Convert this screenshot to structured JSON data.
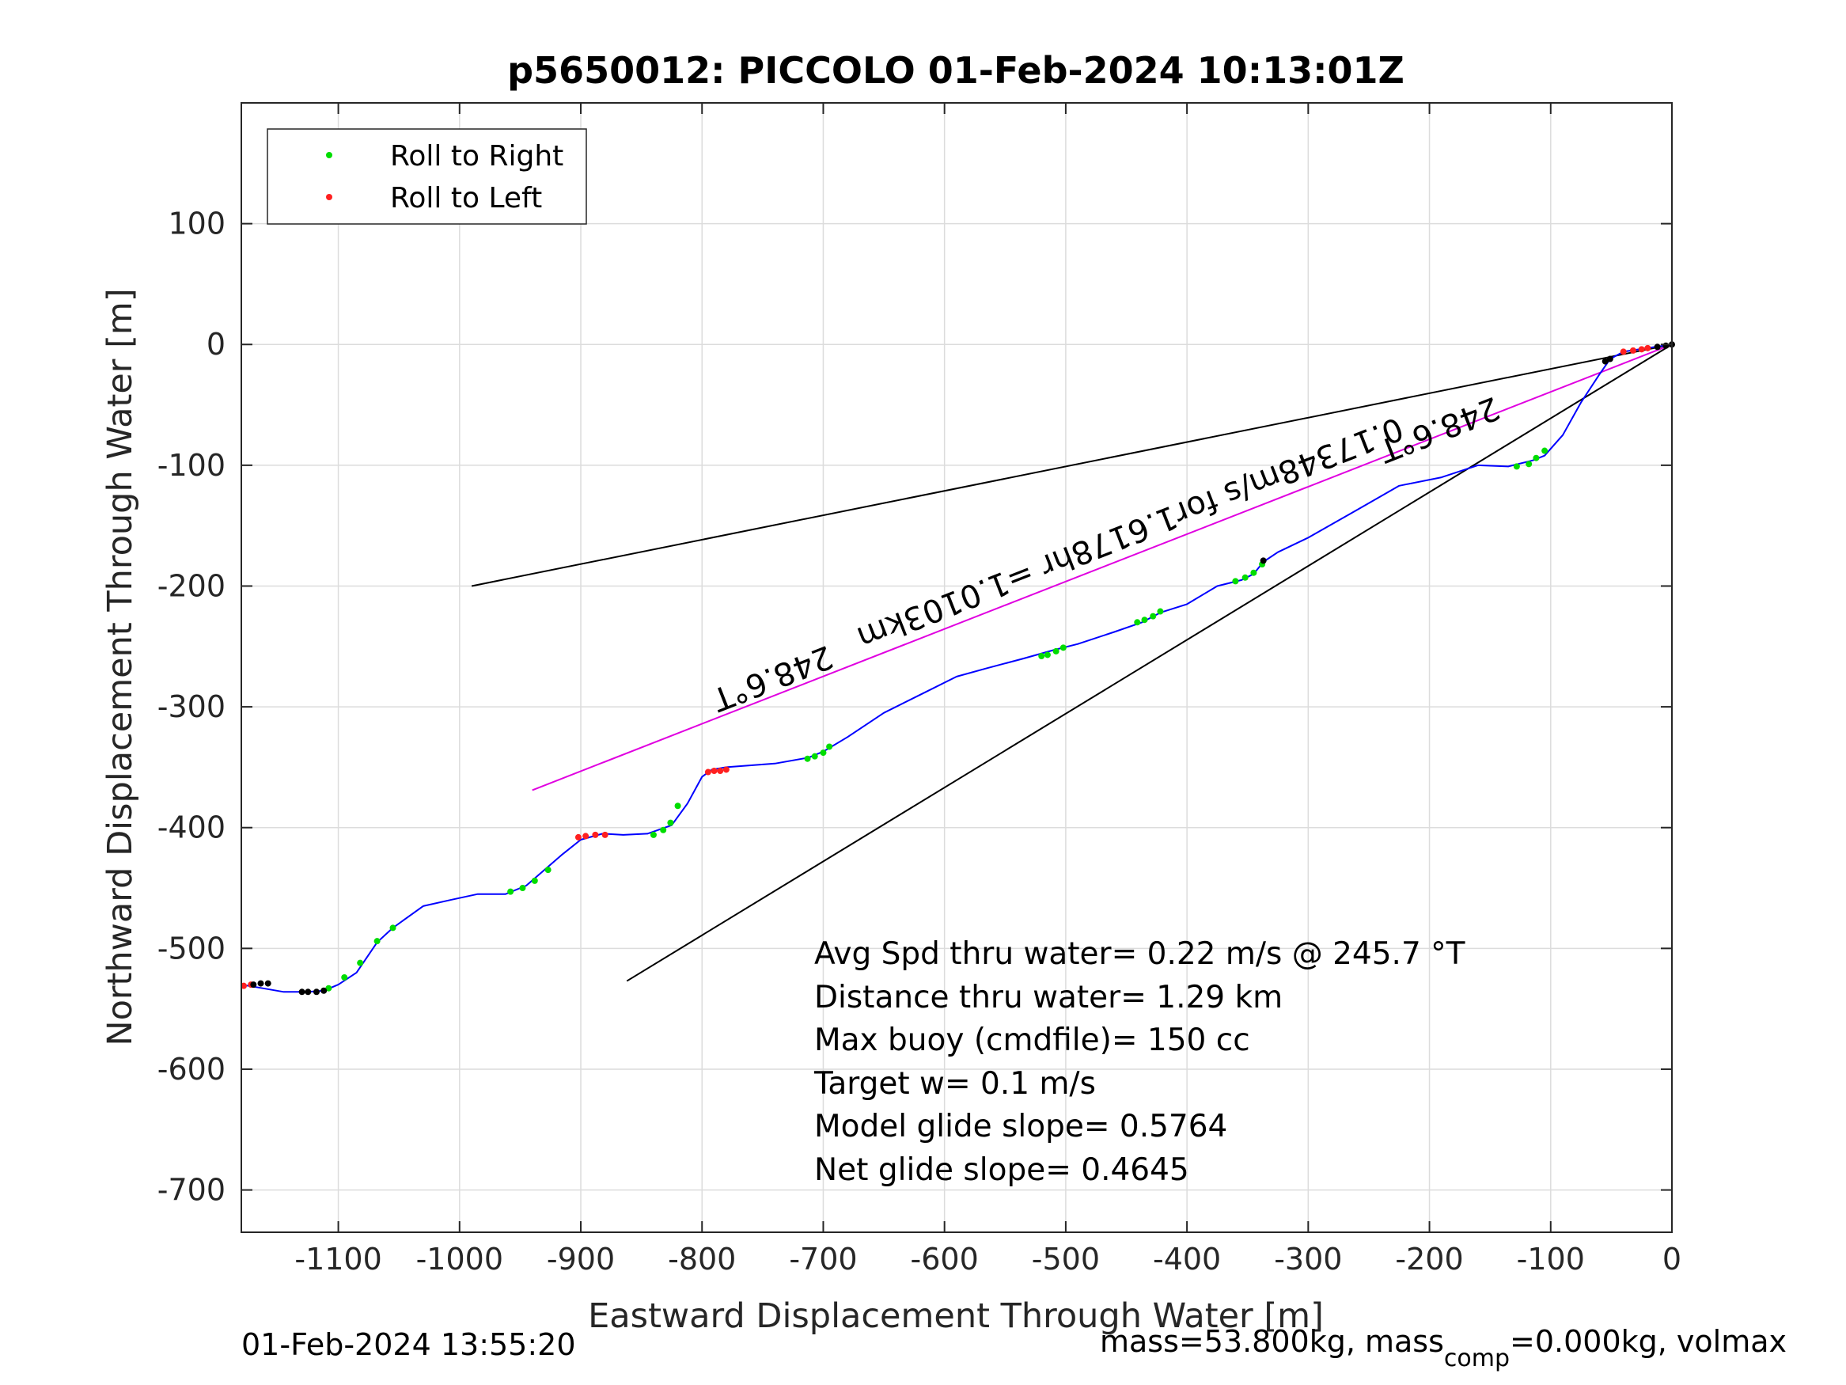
{
  "chart_data": {
    "type": "line",
    "title": "p5650012: PICCOLO 01-Feb-2024 10:13:01Z",
    "xlabel": "Eastward Displacement Through Water [m]",
    "ylabel": "Northward Displacement Through Water [m]",
    "xlim": [
      -1180,
      0
    ],
    "ylim": [
      -735,
      200
    ],
    "xticks": [
      -1100,
      -1000,
      -900,
      -800,
      -700,
      -600,
      -500,
      -400,
      -300,
      -200,
      -100,
      0
    ],
    "yticks": [
      100,
      0,
      -100,
      -200,
      -300,
      -400,
      -500,
      -600,
      -700
    ],
    "grid": true,
    "legend_position": "top-left",
    "legend": [
      {
        "label": "Roll to Right",
        "color": "#00dd00"
      },
      {
        "label": "Roll to Left",
        "color": "#ff2020"
      }
    ],
    "series": [
      {
        "style": "track",
        "color": "#0000ff",
        "x": [
          0,
          -20,
          -40,
          -51,
          -60,
          -75,
          -90,
          -105,
          -115,
          -135,
          -160,
          -190,
          -225,
          -265,
          -300,
          -325,
          -337,
          -345,
          -355,
          -375,
          -400,
          -422,
          -437,
          -460,
          -490,
          -510,
          -535,
          -565,
          -590,
          -620,
          -650,
          -680,
          -700,
          -712,
          -740,
          -780,
          -792,
          -800,
          -812,
          -825,
          -845,
          -865,
          -882,
          -900,
          -915,
          -930,
          -945,
          -962,
          -985,
          -1008,
          -1030,
          -1055,
          -1068,
          -1085,
          -1100,
          -1112,
          -1125,
          -1145,
          -1168,
          -1180
        ],
        "y": [
          0,
          -3,
          -6,
          -12,
          -25,
          -48,
          -75,
          -92,
          -96,
          -101,
          -100,
          -110,
          -117,
          -140,
          -160,
          -172,
          -180,
          -190,
          -195,
          -200,
          -215,
          -222,
          -230,
          -238,
          -248,
          -253,
          -260,
          -268,
          -275,
          -290,
          -305,
          -325,
          -337,
          -342,
          -347,
          -350,
          -352,
          -358,
          -380,
          -398,
          -405,
          -406,
          -405,
          -410,
          -422,
          -435,
          -448,
          -455,
          -455,
          -460,
          -465,
          -483,
          -495,
          -520,
          -530,
          -535,
          -536,
          -536,
          -532,
          -530
        ]
      },
      {
        "name": "Roll to Right",
        "color": "#00dd00",
        "x": [
          -105,
          -112,
          -118,
          -128,
          -338,
          -345,
          -352,
          -360,
          -422,
          -428,
          -435,
          -441,
          -502,
          -508,
          -515,
          -520,
          -695,
          -700,
          -707,
          -713,
          -820,
          -826,
          -832,
          -840,
          -927,
          -938,
          -948,
          -958,
          -1055,
          -1068,
          -1082,
          -1095,
          -1108
        ],
        "y": [
          -88,
          -94,
          -99,
          -101,
          -182,
          -189,
          -193,
          -196,
          -221,
          -225,
          -228,
          -230,
          -251,
          -254,
          -257,
          -258,
          -333,
          -338,
          -341,
          -343,
          -382,
          -396,
          -402,
          -406,
          -435,
          -444,
          -450,
          -453,
          -483,
          -494,
          -512,
          -524,
          -533
        ]
      },
      {
        "name": "Roll to Left",
        "color": "#ff2020",
        "x": [
          -20,
          -25,
          -32,
          -40,
          -780,
          -785,
          -790,
          -795,
          -880,
          -888,
          -896,
          -902,
          -1172,
          -1178
        ],
        "y": [
          -3,
          -4,
          -5,
          -6,
          -352,
          -353,
          -353,
          -354,
          -406,
          -406,
          -407,
          -408,
          -530,
          -531
        ]
      },
      {
        "style": "markers",
        "color": "#000000",
        "x": [
          0,
          -5,
          -12,
          -51,
          -55,
          -337,
          -1112,
          -1118,
          -1125,
          -1130,
          -1158,
          -1164,
          -1170
        ],
        "y": [
          0,
          -1,
          -2,
          -12,
          -14,
          -179,
          -535,
          -536,
          -536,
          -536,
          -529,
          -529,
          -530
        ]
      },
      {
        "style": "reference",
        "color": "#000000",
        "x": [
          0,
          -990
        ],
        "y": [
          0,
          -200
        ]
      },
      {
        "style": "reference",
        "color": "#000000",
        "x": [
          0,
          -862
        ],
        "y": [
          0,
          -527
        ]
      },
      {
        "style": "reference",
        "color": "#e000e0",
        "x": [
          0,
          -940
        ],
        "y": [
          0,
          -369
        ]
      }
    ],
    "annotations": [
      {
        "text": "248.6°T",
        "x": -745,
        "y": -268,
        "rotate": 158.6
      },
      {
        "text": "248.6°T",
        "x": -195,
        "y": -62,
        "rotate": 158.6
      },
      {
        "text": "0.17348m/s for1.6178hr =1.0103km",
        "x": -450,
        "y": -148,
        "rotate": 158.6
      }
    ],
    "stats": [
      "Avg Spd thru water=  0.22 m/s @ 245.7 °T",
      "Distance thru water=  1.29 km",
      "Max buoy (cmdfile)= 150 cc",
      "Target w= 0.1 m/s",
      "Model glide slope= 0.5764",
      "Net glide slope= 0.4645"
    ]
  },
  "footer": {
    "timestamp": "01-Feb-2024 13:55:20",
    "mass_prefix": "mass=53.800kg, mass",
    "mass_sub": "comp",
    "mass_suffix": "=0.000kg, volmax"
  }
}
